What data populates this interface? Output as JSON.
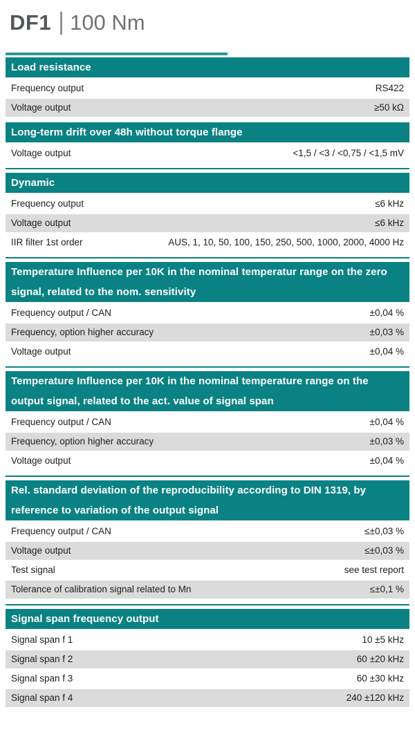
{
  "title": {
    "model": "DF1",
    "separator": "|",
    "range": "100 Nm"
  },
  "colors": {
    "accent_teal": "#0a8284",
    "row_gray": "#dbdbdb",
    "header_text": "#ffffff",
    "body_text": "#1d1d1b",
    "title_dark": "#53565a",
    "title_light": "#6e7175"
  },
  "sections": [
    {
      "header": "Load resistance",
      "rows": [
        {
          "label": "Frequency output",
          "value": "RS422"
        },
        {
          "label": "Voltage output",
          "value": "≥50 kΩ"
        }
      ]
    },
    {
      "header": "Long-term drift over 48h without torque flange",
      "rows": [
        {
          "label": "Voltage output",
          "value": "<1,5 / <3 / <0,75 / <1,5 mV"
        }
      ]
    },
    {
      "header": "Dynamic",
      "rows": [
        {
          "label": "Frequency output",
          "value": "≤6 kHz"
        },
        {
          "label": "Voltage output",
          "value": "≤6 kHz"
        },
        {
          "label": "IIR filter 1st order",
          "value": "AUS, 1, 10, 50, 100, 150, 250, 500, 1000, 2000, 4000 Hz"
        }
      ]
    },
    {
      "header": "Temperature Influence per 10K in the nominal temperatur range on the zero signal, related to the nom. sensitivity",
      "rows": [
        {
          "label": "Frequency output / CAN",
          "value": "±0,04 %"
        },
        {
          "label": "Frequency, option higher accuracy",
          "value": "±0,03 %"
        },
        {
          "label": "Voltage output",
          "value": "±0,04 %"
        }
      ]
    },
    {
      "header": "Temperature Influence per 10K in the nominal temperature range on the output signal, related to the act. value of signal span",
      "rows": [
        {
          "label": "Frequency output / CAN",
          "value": "±0,04 %"
        },
        {
          "label": "Frequency, option higher accuracy",
          "value": "±0,03 %"
        },
        {
          "label": "Voltage output",
          "value": "±0,04 %"
        }
      ]
    },
    {
      "header": "Rel. standard deviation of the reproducibility  according to DIN 1319, by reference to variation of the output signal",
      "rows": [
        {
          "label": "Frequency output / CAN",
          "value": "≤±0,03 %"
        },
        {
          "label": "Voltage output",
          "value": "≤±0,03 %"
        },
        {
          "label": "Test signal",
          "value": "see test report"
        },
        {
          "label": "Tolerance of calibration signal related to Mn",
          "value": "≤±0,1 %"
        }
      ]
    },
    {
      "header": "Signal span frequency output",
      "rows": [
        {
          "label": "Signal span f 1",
          "value": "10 ±5 kHz"
        },
        {
          "label": "Signal span f 2",
          "value": "60 ±20 kHz"
        },
        {
          "label": "Signal span f 3",
          "value": "60 ±30 kHz"
        },
        {
          "label": "Signal span f 4",
          "value": "240 ±120 kHz"
        }
      ]
    }
  ]
}
